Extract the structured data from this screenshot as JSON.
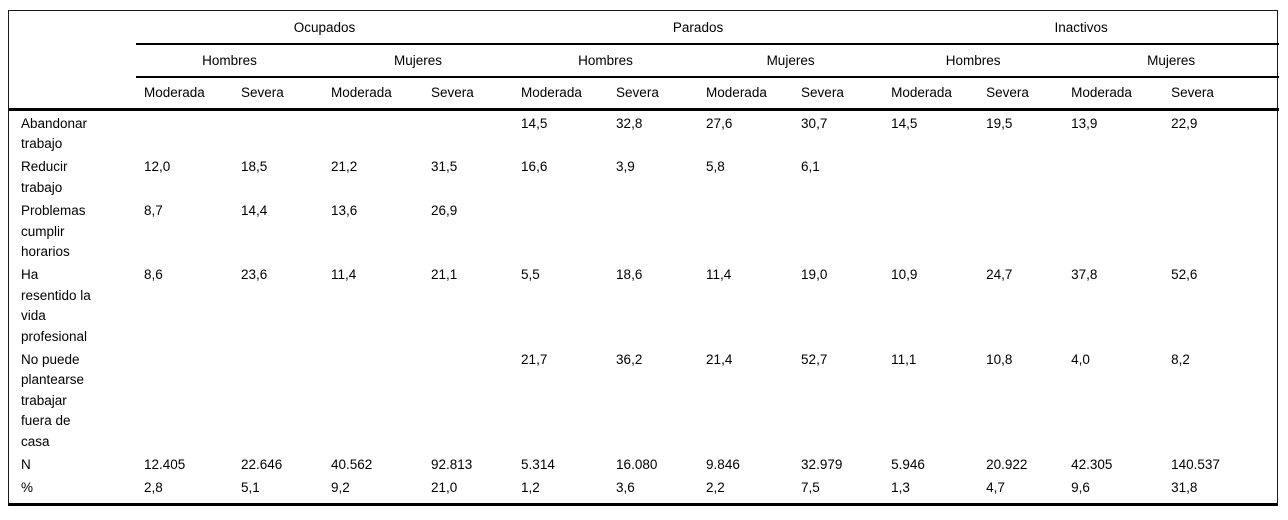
{
  "table": {
    "groups": [
      {
        "label": "Ocupados"
      },
      {
        "label": "Parados"
      },
      {
        "label": "Inactivos"
      }
    ],
    "subgroups": [
      "Hombres",
      "Mujeres",
      "Hombres",
      "Mujeres",
      "Hombres",
      "Mujeres"
    ],
    "col_headers": [
      "Moderada",
      "Severa",
      "Moderada",
      "Severa",
      "Moderada",
      "Severa",
      "Moderada",
      "Severa",
      "Moderada",
      "Severa",
      "Moderada",
      "Severa"
    ],
    "rows": [
      {
        "label": "Abandonar\ntrabajo",
        "values": [
          "",
          "",
          "",
          "",
          "14,5",
          "32,8",
          "27,6",
          "30,7",
          "14,5",
          "19,5",
          "13,9",
          "22,9"
        ]
      },
      {
        "label": "Reducir\ntrabajo",
        "values": [
          "12,0",
          "18,5",
          "21,2",
          "31,5",
          "16,6",
          "3,9",
          "5,8",
          "6,1",
          "",
          "",
          "",
          ""
        ]
      },
      {
        "label": "Problemas\ncumplir\nhorarios",
        "values": [
          "8,7",
          "14,4",
          "13,6",
          "26,9",
          "",
          "",
          "",
          "",
          "",
          "",
          "",
          ""
        ]
      },
      {
        "label": "Ha\nresentido la\nvida\nprofesional",
        "values": [
          "8,6",
          "23,6",
          "11,4",
          "21,1",
          "5,5",
          "18,6",
          "11,4",
          "19,0",
          "10,9",
          "24,7",
          "37,8",
          "52,6"
        ]
      },
      {
        "label": "No puede\nplantearse\ntrabajar\nfuera de\ncasa",
        "values": [
          "",
          "",
          "",
          "",
          "21,7",
          "36,2",
          "21,4",
          "52,7",
          "11,1",
          "10,8",
          "4,0",
          "8,2"
        ]
      },
      {
        "label": "N",
        "values": [
          "12.405",
          "22.646",
          "40.562",
          "92.813",
          "5.314",
          "16.080",
          "9.846",
          "32.979",
          "5.946",
          "20.922",
          "42.305",
          "140.537"
        ]
      },
      {
        "label": "%",
        "values": [
          "2,8",
          "5,1",
          "9,2",
          "21,0",
          "1,2",
          "3,6",
          "2,2",
          "7,5",
          "1,3",
          "4,7",
          "9,6",
          "31,8"
        ]
      }
    ]
  }
}
